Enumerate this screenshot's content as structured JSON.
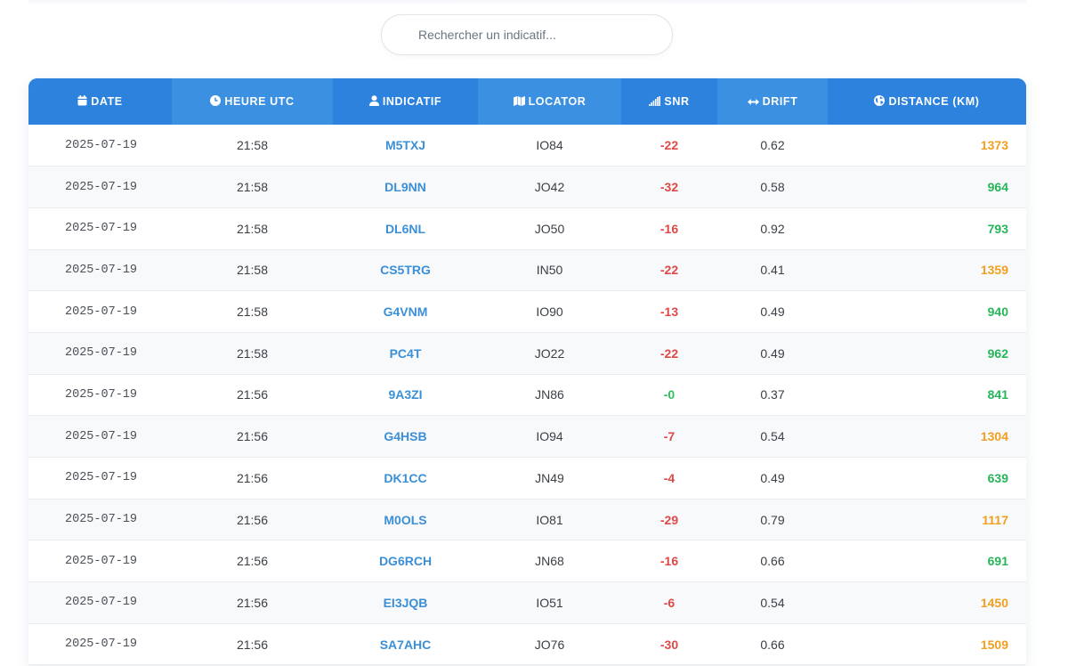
{
  "search": {
    "placeholder": "Rechercher un indicatif..."
  },
  "table": {
    "columns": [
      {
        "key": "date",
        "label": "DATE",
        "icon": "calendar-icon"
      },
      {
        "key": "time",
        "label": "HEURE UTC",
        "icon": "clock-icon"
      },
      {
        "key": "callsign",
        "label": "INDICATIF",
        "icon": "user-icon"
      },
      {
        "key": "locator",
        "label": "LOCATOR",
        "icon": "map-icon"
      },
      {
        "key": "snr",
        "label": "SNR",
        "icon": "signal-icon"
      },
      {
        "key": "drift",
        "label": "DRIFT",
        "icon": "arrows-horizontal-icon"
      },
      {
        "key": "distance",
        "label": "DISTANCE (KM)",
        "icon": "globe-icon"
      }
    ],
    "rows": [
      {
        "date": "2025-07-19",
        "time": "21:58",
        "callsign": "M5TXJ",
        "locator": "IO84",
        "snr": "-22",
        "drift": "0.62",
        "distance": "1373"
      },
      {
        "date": "2025-07-19",
        "time": "21:58",
        "callsign": "DL9NN",
        "locator": "JO42",
        "snr": "-32",
        "drift": "0.58",
        "distance": "964"
      },
      {
        "date": "2025-07-19",
        "time": "21:58",
        "callsign": "DL6NL",
        "locator": "JO50",
        "snr": "-16",
        "drift": "0.92",
        "distance": "793"
      },
      {
        "date": "2025-07-19",
        "time": "21:58",
        "callsign": "CS5TRG",
        "locator": "IN50",
        "snr": "-22",
        "drift": "0.41",
        "distance": "1359"
      },
      {
        "date": "2025-07-19",
        "time": "21:58",
        "callsign": "G4VNM",
        "locator": "IO90",
        "snr": "-13",
        "drift": "0.49",
        "distance": "940"
      },
      {
        "date": "2025-07-19",
        "time": "21:58",
        "callsign": "PC4T",
        "locator": "JO22",
        "snr": "-22",
        "drift": "0.49",
        "distance": "962"
      },
      {
        "date": "2025-07-19",
        "time": "21:56",
        "callsign": "9A3ZI",
        "locator": "JN86",
        "snr": "-0",
        "drift": "0.37",
        "distance": "841"
      },
      {
        "date": "2025-07-19",
        "time": "21:56",
        "callsign": "G4HSB",
        "locator": "IO94",
        "snr": "-7",
        "drift": "0.54",
        "distance": "1304"
      },
      {
        "date": "2025-07-19",
        "time": "21:56",
        "callsign": "DK1CC",
        "locator": "JN49",
        "snr": "-4",
        "drift": "0.49",
        "distance": "639"
      },
      {
        "date": "2025-07-19",
        "time": "21:56",
        "callsign": "M0OLS",
        "locator": "IO81",
        "snr": "-29",
        "drift": "0.79",
        "distance": "1117"
      },
      {
        "date": "2025-07-19",
        "time": "21:56",
        "callsign": "DG6RCH",
        "locator": "JN68",
        "snr": "-16",
        "drift": "0.66",
        "distance": "691"
      },
      {
        "date": "2025-07-19",
        "time": "21:56",
        "callsign": "EI3JQB",
        "locator": "IO51",
        "snr": "-6",
        "drift": "0.54",
        "distance": "1450"
      },
      {
        "date": "2025-07-19",
        "time": "21:56",
        "callsign": "SA7AHC",
        "locator": "JO76",
        "snr": "-30",
        "drift": "0.66",
        "distance": "1509"
      }
    ]
  },
  "colors": {
    "header_blue": "#2f86de",
    "callsign_blue": "#3b8fd6",
    "snr_negative": "#e04848",
    "snr_zero": "#2fbf5f",
    "distance_near": "#26b55a",
    "distance_far": "#f0a020"
  }
}
